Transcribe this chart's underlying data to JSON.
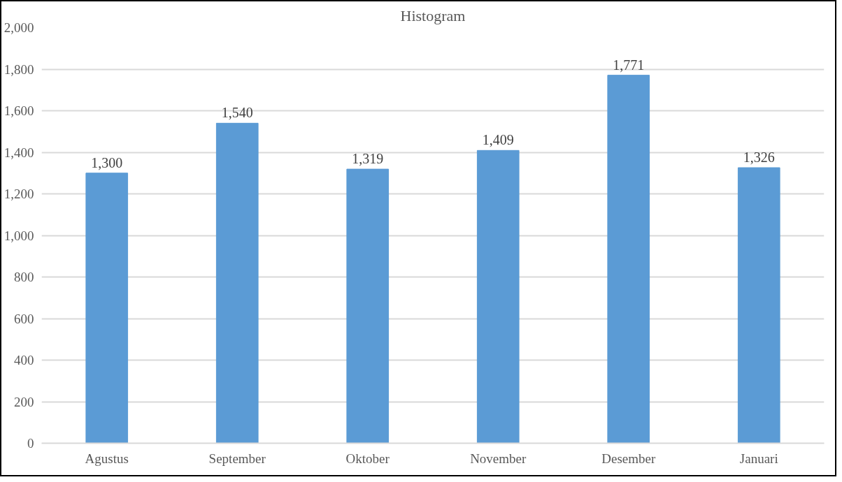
{
  "chart_data": {
    "type": "bar",
    "title": "Histogram",
    "categories": [
      "Agustus",
      "September",
      "Oktober",
      "November",
      "Desember",
      "Januari"
    ],
    "values": [
      1300,
      1540,
      1319,
      1409,
      1771,
      1326
    ],
    "value_labels": [
      "1,300",
      "1,540",
      "1,319",
      "1,409",
      "1,771",
      "1,326"
    ],
    "color": "#5b9bd5",
    "ylim": [
      0,
      2000
    ],
    "yticks": [
      0,
      200,
      400,
      600,
      800,
      {
        "value": 1000,
        "label": "1,000"
      },
      {
        "value": 1200,
        "label": "1,200"
      },
      {
        "value": 1400,
        "label": "1,400"
      },
      {
        "value": 1600,
        "label": "1,600"
      },
      {
        "value": 1800,
        "label": "1,800"
      },
      {
        "value": 2000,
        "label": "2,000"
      }
    ],
    "grid": "y"
  }
}
